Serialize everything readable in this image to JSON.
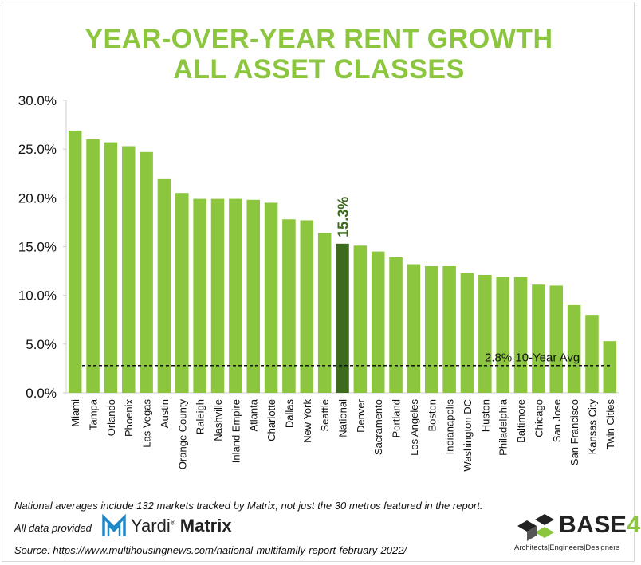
{
  "header": {
    "title_line1": "YEAR-OVER-YEAR RENT GROWTH",
    "title_line2": "ALL ASSET CLASSES"
  },
  "colors": {
    "bar": "#8cc63f",
    "highlight_bar": "#3d6b1e",
    "title": "#8cc63f",
    "highlight_label": "#3d6b1e"
  },
  "chart_data": {
    "type": "bar",
    "categories": [
      "Miami",
      "Tampa",
      "Orlando",
      "Phoenix",
      "Las Vegas",
      "Austin",
      "Orange County",
      "Raleigh",
      "Nashville",
      "Inland Empire",
      "Atlanta",
      "Charlotte",
      "Dallas",
      "New York",
      "Seattle",
      "National",
      "Denver",
      "Sacramento",
      "Portland",
      "Los Angeles",
      "Boston",
      "Indianapolis",
      "Washington DC",
      "Huston",
      "Philadelphia",
      "Baltimore",
      "Chicago",
      "San Jose",
      "San Francisco",
      "Kansas City",
      "Twin Cities"
    ],
    "values": [
      26.9,
      26.0,
      25.7,
      25.3,
      24.7,
      22.0,
      20.5,
      19.9,
      19.9,
      19.9,
      19.8,
      19.5,
      17.8,
      17.7,
      16.4,
      15.3,
      15.1,
      14.5,
      13.9,
      13.2,
      13.0,
      13.0,
      12.3,
      12.1,
      11.9,
      11.9,
      11.1,
      11.0,
      9.0,
      8.0,
      5.3
    ],
    "ylim": [
      0,
      30
    ],
    "yticks": [
      0,
      5,
      10,
      15,
      20,
      25,
      30
    ],
    "ytick_labels": [
      "0.0%",
      "5.0%",
      "10.0%",
      "15.0%",
      "20.0%",
      "25.0%",
      "30.0%"
    ],
    "highlight_category": "National",
    "highlight_label": "15.3%",
    "reference_line": {
      "value": 2.8,
      "label": "2.8% 10-Year Avg",
      "style": "dashed"
    },
    "grid": false,
    "legend": "none"
  },
  "footer": {
    "note": "National averages include 132 markets tracked by Matrix, not just the 30 metros featured in the report.",
    "provided_label": "All data provided",
    "yardi_name": "Yardi",
    "yardi_product": "Matrix",
    "source": "Source: https://www.multihousingnews.com/national-multifamily-report-february-2022/"
  },
  "brand": {
    "name": "BASE",
    "superscript": "4",
    "tagline": "Architects|Engineers|Designers"
  }
}
